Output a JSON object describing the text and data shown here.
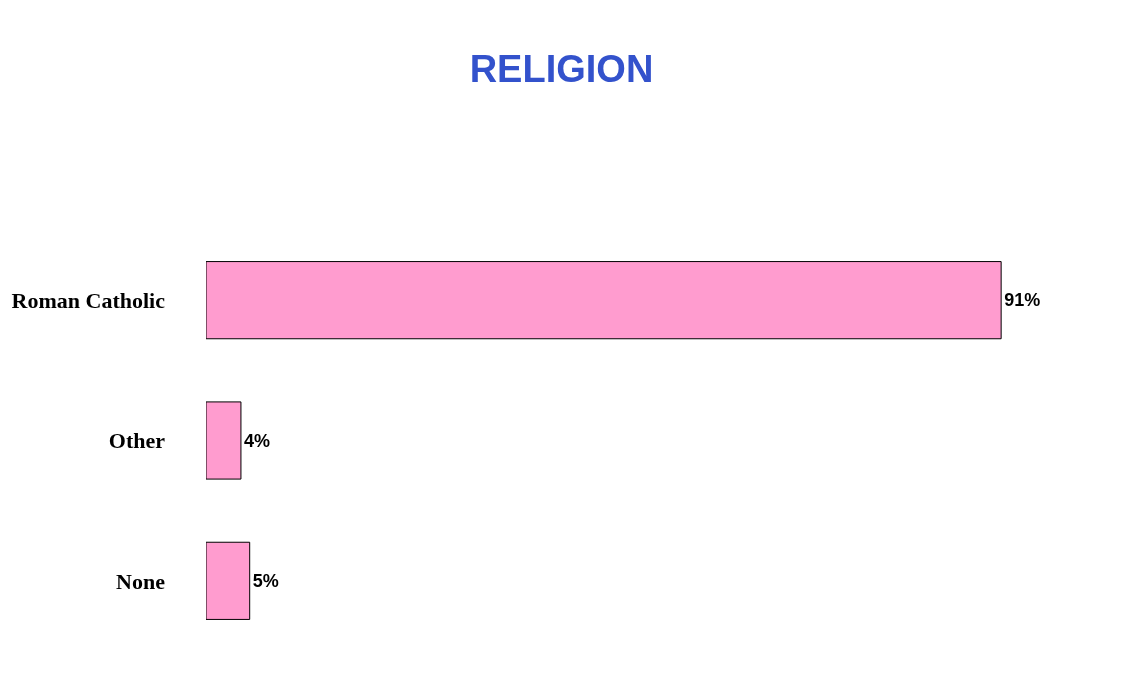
{
  "chart_data": {
    "type": "bar",
    "title": "RELIGION",
    "orientation": "horizontal",
    "categories": [
      "Roman Catholic",
      "Other",
      "None"
    ],
    "values": [
      91,
      4,
      5
    ],
    "value_labels": [
      "91%",
      "4%",
      "5%"
    ],
    "color": "#ff9ccf",
    "legend": false
  }
}
